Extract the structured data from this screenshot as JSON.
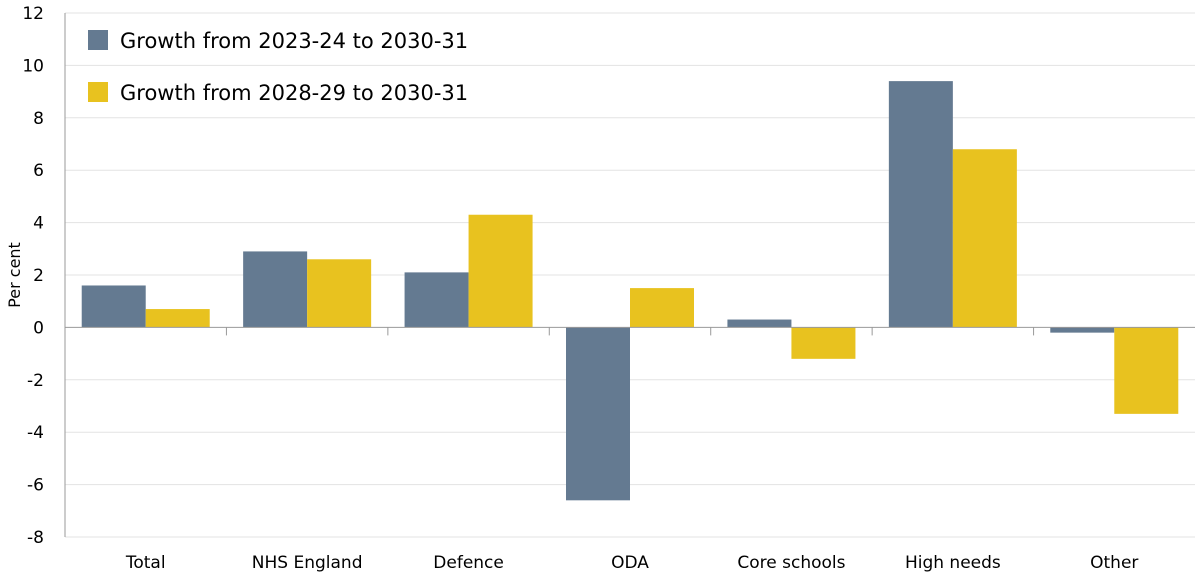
{
  "chart_data": {
    "type": "bar",
    "title": "",
    "xlabel": "",
    "ylabel": "Per cent",
    "ylim": [
      -8,
      12
    ],
    "yticks": [
      -8,
      -6,
      -4,
      -2,
      0,
      2,
      4,
      6,
      8,
      10,
      12
    ],
    "grid": "horizontal",
    "legend_position": "top-left",
    "categories": [
      "Total",
      "NHS England",
      "Defence",
      "ODA",
      "Core schools",
      "High needs",
      "Other"
    ],
    "series": [
      {
        "name": "Growth from 2023-24 to 2030-31",
        "color": "#647a91",
        "values": [
          1.6,
          2.9,
          2.1,
          -6.6,
          0.3,
          9.4,
          -0.2
        ]
      },
      {
        "name": "Growth from 2028-29 to 2030-31",
        "color": "#e8c21f",
        "values": [
          0.7,
          2.6,
          4.3,
          1.5,
          -1.2,
          6.8,
          -3.3
        ]
      }
    ]
  }
}
